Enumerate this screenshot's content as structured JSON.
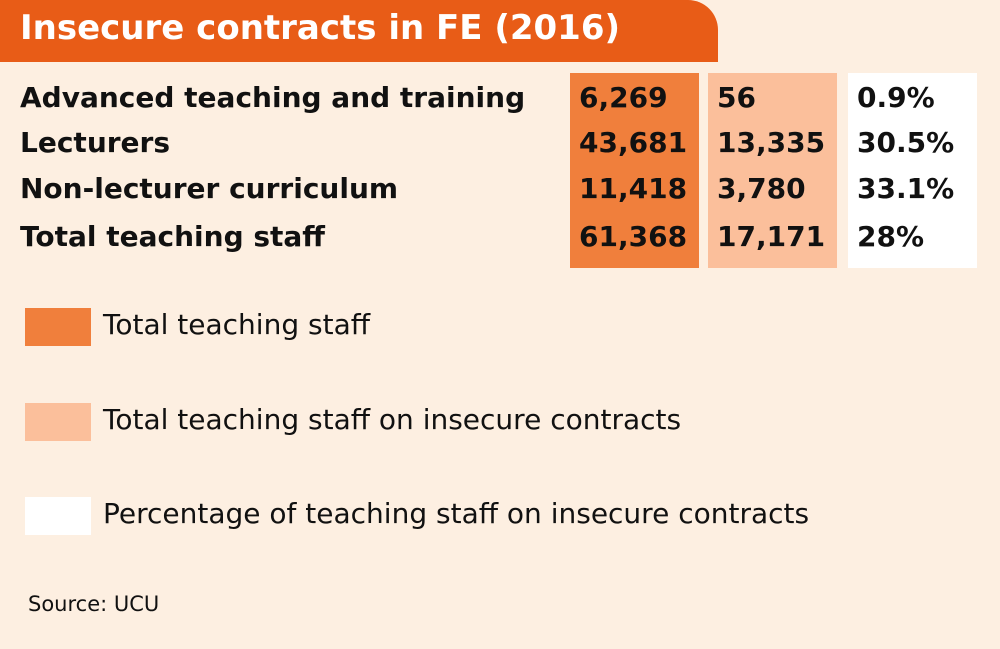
{
  "header": {
    "title": "Insecure contracts in FE (2016)"
  },
  "table": {
    "rows": [
      [
        "Advanced teaching and training",
        "6,269",
        "56",
        "0.9%"
      ],
      [
        "Lecturers",
        "43,681",
        "13,335",
        "30.5%"
      ],
      [
        "Non-lecturer curriculum",
        "11,418",
        "3,780",
        "33.1%"
      ],
      [
        "Total teaching staff",
        "61,368",
        "17,171",
        "28%"
      ]
    ]
  },
  "legend": {
    "items": [
      {
        "label": "Total teaching staff",
        "color": "#f07f3c"
      },
      {
        "label": "Total teaching staff on insecure contracts",
        "color": "#fbbf9b"
      },
      {
        "label": "Percentage of teaching staff on insecure contracts",
        "color": "#ffffff"
      }
    ]
  },
  "footer": {
    "source": "Source: UCU"
  }
}
